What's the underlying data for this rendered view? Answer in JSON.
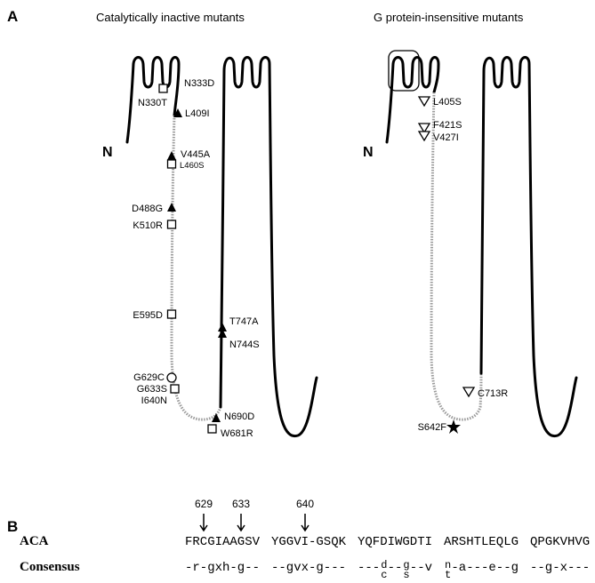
{
  "panel_a": {
    "label": "A",
    "left": {
      "title": "Catalytically inactive mutants",
      "n_label": "N",
      "mutations": [
        "N333D",
        "N330T",
        "L409I",
        "V445A",
        "L460S",
        "D488G",
        "K510R",
        "E595D",
        "G629C",
        "G633S",
        "I640N",
        "T747A",
        "N744S",
        "N690D",
        "W681R"
      ]
    },
    "right": {
      "title": "G protein-insensitive mutants",
      "n_label": "N",
      "mutations": [
        "L405S",
        "F421S",
        "V427I",
        "S642F",
        "C713R"
      ]
    }
  },
  "panel_b": {
    "label": "B",
    "positions": [
      629,
      633,
      640
    ],
    "sequence": {
      "name": "ACA",
      "blocks": [
        "FRCGIAAGSV",
        "YGGVI-GSQK",
        "YQFDIWGDTI",
        "ARSHTLEQLG",
        "QPGKVHVG"
      ]
    },
    "consensus": {
      "name": "Consensus",
      "blocks": [
        [
          "-r-gxh-g--"
        ],
        [
          "--gvx-g---"
        ],
        [
          "---",
          {
            "upper": "d",
            "lower": "c"
          },
          "--",
          {
            "upper": "g",
            "lower": "s"
          },
          "--v"
        ],
        [
          {
            "upper": "n",
            "lower": "t"
          },
          "-a---e--g"
        ],
        [
          "--g-x---"
        ]
      ]
    }
  }
}
